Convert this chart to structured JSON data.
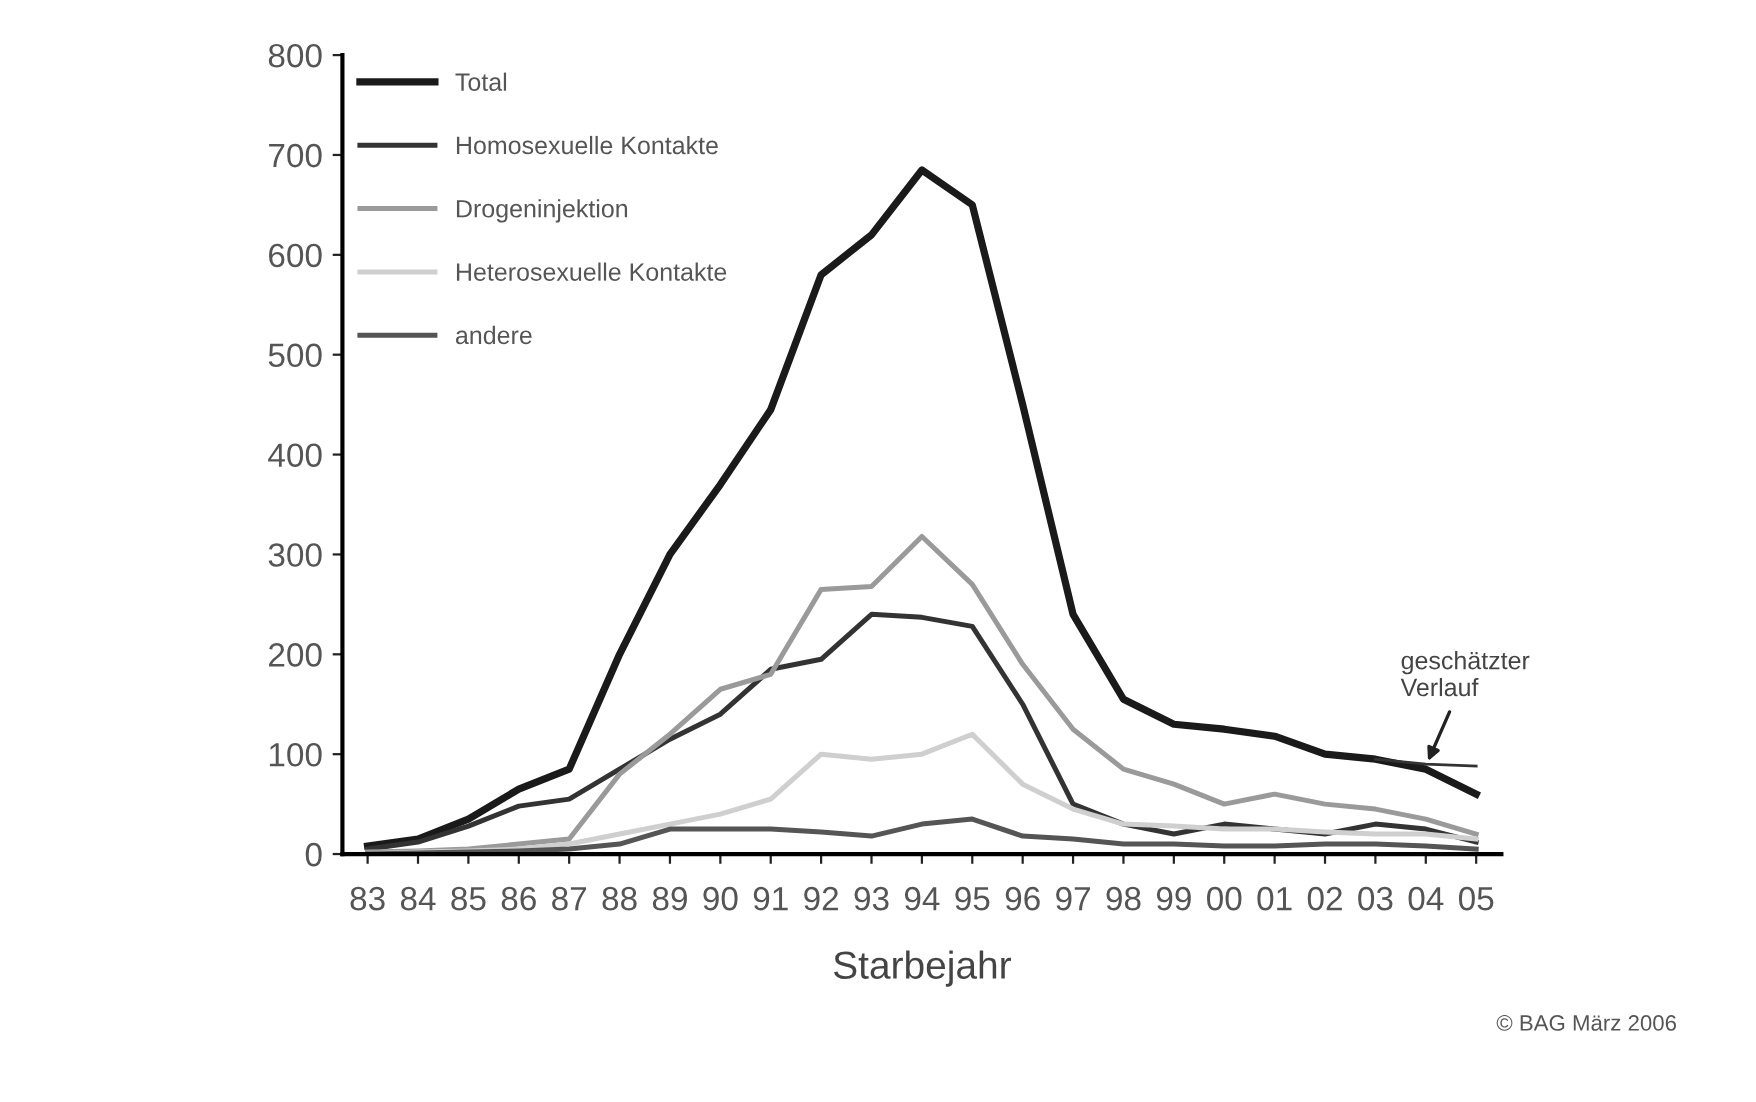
{
  "chart_data": {
    "type": "line",
    "xlabel": "Starbejahr",
    "categories": [
      "83",
      "84",
      "85",
      "86",
      "87",
      "88",
      "89",
      "90",
      "91",
      "92",
      "93",
      "94",
      "95",
      "96",
      "97",
      "98",
      "99",
      "00",
      "01",
      "02",
      "03",
      "04",
      "05"
    ],
    "series": [
      {
        "name": "Total",
        "color": "#1a1a1a",
        "values": [
          8,
          15,
          35,
          65,
          85,
          200,
          300,
          370,
          445,
          580,
          620,
          685,
          650,
          450,
          240,
          155,
          130,
          125,
          118,
          100,
          95,
          85,
          60
        ]
      },
      {
        "name": "Homosexuelle Kontakte",
        "color": "#333333",
        "values": [
          5,
          12,
          28,
          48,
          55,
          85,
          115,
          140,
          185,
          195,
          240,
          237,
          228,
          150,
          50,
          30,
          20,
          30,
          25,
          20,
          30,
          25,
          12
        ]
      },
      {
        "name": "Drogeninjektion",
        "color": "#9a9a9a",
        "values": [
          2,
          3,
          5,
          10,
          15,
          80,
          120,
          165,
          180,
          265,
          268,
          318,
          270,
          190,
          125,
          85,
          70,
          50,
          60,
          50,
          45,
          35,
          20
        ]
      },
      {
        "name": "Heterosexuelle Kontakte",
        "color": "#cfcfcf",
        "values": [
          0,
          2,
          3,
          5,
          10,
          20,
          30,
          40,
          55,
          100,
          95,
          100,
          120,
          70,
          45,
          30,
          28,
          25,
          25,
          22,
          20,
          20,
          15
        ]
      },
      {
        "name": "andere",
        "color": "#555555",
        "values": [
          0,
          1,
          2,
          3,
          5,
          10,
          25,
          25,
          25,
          22,
          18,
          30,
          35,
          18,
          15,
          10,
          10,
          8,
          8,
          10,
          10,
          8,
          5
        ]
      },
      {
        "color": "#333333",
        "values": [
          null,
          null,
          null,
          null,
          null,
          null,
          null,
          null,
          null,
          null,
          null,
          null,
          null,
          null,
          null,
          null,
          null,
          null,
          null,
          null,
          95,
          90,
          88
        ]
      }
    ],
    "ylim": [
      0,
      800
    ],
    "yticks": [
      0,
      100,
      200,
      300,
      400,
      500,
      600,
      700,
      800
    ],
    "legend": "top left",
    "grid": false,
    "marker": "none",
    "line_style": "solid",
    "annotations": [
      {
        "text": "geschätzter\nVerlauf",
        "x": "04",
        "y": 88
      },
      "© BAG März 2006"
    ]
  }
}
